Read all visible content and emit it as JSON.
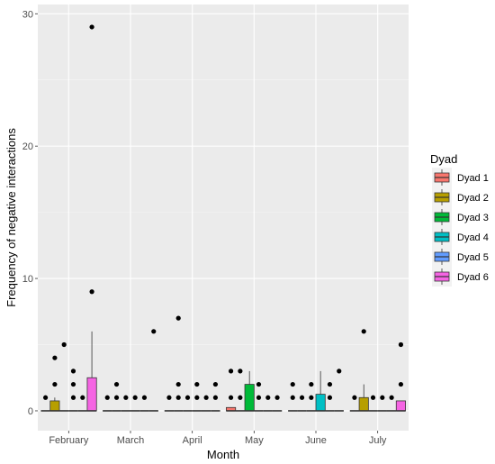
{
  "chart_data": {
    "type": "boxplot",
    "title": "",
    "xlabel": "Month",
    "ylabel": "Frequency of negative interactions",
    "ylim": [
      -1.5,
      30.7
    ],
    "yticks": [
      0,
      10,
      20,
      30
    ],
    "grid": true,
    "legend_title": "Dyad",
    "legend_position": "right",
    "categories": [
      "February",
      "March",
      "April",
      "May",
      "June",
      "July"
    ],
    "series": [
      {
        "name": "Dyad 1",
        "color": "#F8766D"
      },
      {
        "name": "Dyad 2",
        "color": "#B79F00"
      },
      {
        "name": "Dyad 3",
        "color": "#00BA38"
      },
      {
        "name": "Dyad 4",
        "color": "#00BFC4"
      },
      {
        "name": "Dyad 5",
        "color": "#619CFF"
      },
      {
        "name": "Dyad 6",
        "color": "#F564E3"
      }
    ],
    "boxes": [
      [
        {
          "q1": 0,
          "median": 0,
          "q3": 0,
          "wlow": 0,
          "whigh": 0,
          "outliers": [
            1
          ]
        },
        {
          "q1": 0,
          "median": 0,
          "q3": 0.75,
          "wlow": 0,
          "whigh": 1,
          "outliers": [
            4,
            2
          ]
        },
        {
          "q1": 0,
          "median": 0,
          "q3": 0,
          "wlow": 0,
          "whigh": 0,
          "outliers": [
            5
          ]
        },
        {
          "q1": 0,
          "median": 0,
          "q3": 0,
          "wlow": 0,
          "whigh": 0,
          "outliers": [
            3,
            2,
            1
          ]
        },
        {
          "q1": 0,
          "median": 0,
          "q3": 0,
          "wlow": 0,
          "whigh": 0,
          "outliers": [
            1
          ]
        },
        {
          "q1": 0,
          "median": 0,
          "q3": 2.5,
          "wlow": 0,
          "whigh": 6,
          "outliers": [
            29,
            9
          ]
        }
      ],
      [
        {
          "q1": 0,
          "median": 0,
          "q3": 0,
          "wlow": 0,
          "whigh": 0,
          "outliers": [
            1
          ]
        },
        {
          "q1": 0,
          "median": 0,
          "q3": 0,
          "wlow": 0,
          "whigh": 0,
          "outliers": [
            2,
            1
          ]
        },
        {
          "q1": 0,
          "median": 0,
          "q3": 0,
          "wlow": 0,
          "whigh": 0,
          "outliers": [
            1
          ]
        },
        {
          "q1": 0,
          "median": 0,
          "q3": 0,
          "wlow": 0,
          "whigh": 0,
          "outliers": [
            1
          ]
        },
        {
          "q1": 0,
          "median": 0,
          "q3": 0,
          "wlow": 0,
          "whigh": 0,
          "outliers": [
            1
          ]
        },
        {
          "q1": 0,
          "median": 0,
          "q3": 0,
          "wlow": 0,
          "whigh": 0,
          "outliers": [
            6
          ]
        }
      ],
      [
        {
          "q1": 0,
          "median": 0,
          "q3": 0,
          "wlow": 0,
          "whigh": 0,
          "outliers": [
            1
          ]
        },
        {
          "q1": 0,
          "median": 0,
          "q3": 0,
          "wlow": 0,
          "whigh": 0,
          "outliers": [
            7,
            2,
            1
          ]
        },
        {
          "q1": 0,
          "median": 0,
          "q3": 0,
          "wlow": 0,
          "whigh": 0,
          "outliers": [
            1
          ]
        },
        {
          "q1": 0,
          "median": 0,
          "q3": 0,
          "wlow": 0,
          "whigh": 0,
          "outliers": [
            2,
            1
          ]
        },
        {
          "q1": 0,
          "median": 0,
          "q3": 0,
          "wlow": 0,
          "whigh": 0,
          "outliers": [
            1
          ]
        },
        {
          "q1": 0,
          "median": 0,
          "q3": 0,
          "wlow": 0,
          "whigh": 0,
          "outliers": [
            2,
            1
          ]
        }
      ],
      [
        {
          "q1": 0,
          "median": 0,
          "q3": 0.25,
          "wlow": 0,
          "whigh": 0,
          "outliers": [
            3,
            1
          ]
        },
        {
          "q1": 0,
          "median": 0,
          "q3": 0,
          "wlow": 0,
          "whigh": 0,
          "outliers": [
            3,
            1
          ]
        },
        {
          "q1": 0,
          "median": 0,
          "q3": 2,
          "wlow": 0,
          "whigh": 3,
          "outliers": []
        },
        {
          "q1": 0,
          "median": 0,
          "q3": 0,
          "wlow": 0,
          "whigh": 0,
          "outliers": [
            2,
            1
          ]
        },
        {
          "q1": 0,
          "median": 0,
          "q3": 0,
          "wlow": 0,
          "whigh": 0,
          "outliers": [
            1
          ]
        },
        {
          "q1": 0,
          "median": 0,
          "q3": 0,
          "wlow": 0,
          "whigh": 0,
          "outliers": [
            1
          ]
        }
      ],
      [
        {
          "q1": 0,
          "median": 0,
          "q3": 0,
          "wlow": 0,
          "whigh": 0,
          "outliers": [
            2,
            1
          ]
        },
        {
          "q1": 0,
          "median": 0,
          "q3": 0,
          "wlow": 0,
          "whigh": 0,
          "outliers": [
            1
          ]
        },
        {
          "q1": 0,
          "median": 0,
          "q3": 0,
          "wlow": 0,
          "whigh": 0,
          "outliers": [
            2,
            1
          ]
        },
        {
          "q1": 0,
          "median": 0,
          "q3": 1.25,
          "wlow": 0,
          "whigh": 3,
          "outliers": []
        },
        {
          "q1": 0,
          "median": 0,
          "q3": 0,
          "wlow": 0,
          "whigh": 0,
          "outliers": [
            2,
            1
          ]
        },
        {
          "q1": 0,
          "median": 0,
          "q3": 0,
          "wlow": 0,
          "whigh": 0,
          "outliers": [
            3
          ]
        }
      ],
      [
        {
          "q1": 0,
          "median": 0,
          "q3": 0,
          "wlow": 0,
          "whigh": 0,
          "outliers": [
            1
          ]
        },
        {
          "q1": 0,
          "median": 0,
          "q3": 1,
          "wlow": 0,
          "whigh": 2,
          "outliers": [
            6
          ]
        },
        {
          "q1": 0,
          "median": 0,
          "q3": 0,
          "wlow": 0,
          "whigh": 0,
          "outliers": [
            1
          ]
        },
        {
          "q1": 0,
          "median": 0,
          "q3": 0,
          "wlow": 0,
          "whigh": 0,
          "outliers": [
            1
          ]
        },
        {
          "q1": 0,
          "median": 0,
          "q3": 0,
          "wlow": 0,
          "whigh": 0,
          "outliers": [
            1
          ]
        },
        {
          "q1": 0,
          "median": 0,
          "q3": 0.75,
          "wlow": 0,
          "whigh": 0,
          "outliers": [
            5,
            2
          ]
        }
      ]
    ]
  }
}
